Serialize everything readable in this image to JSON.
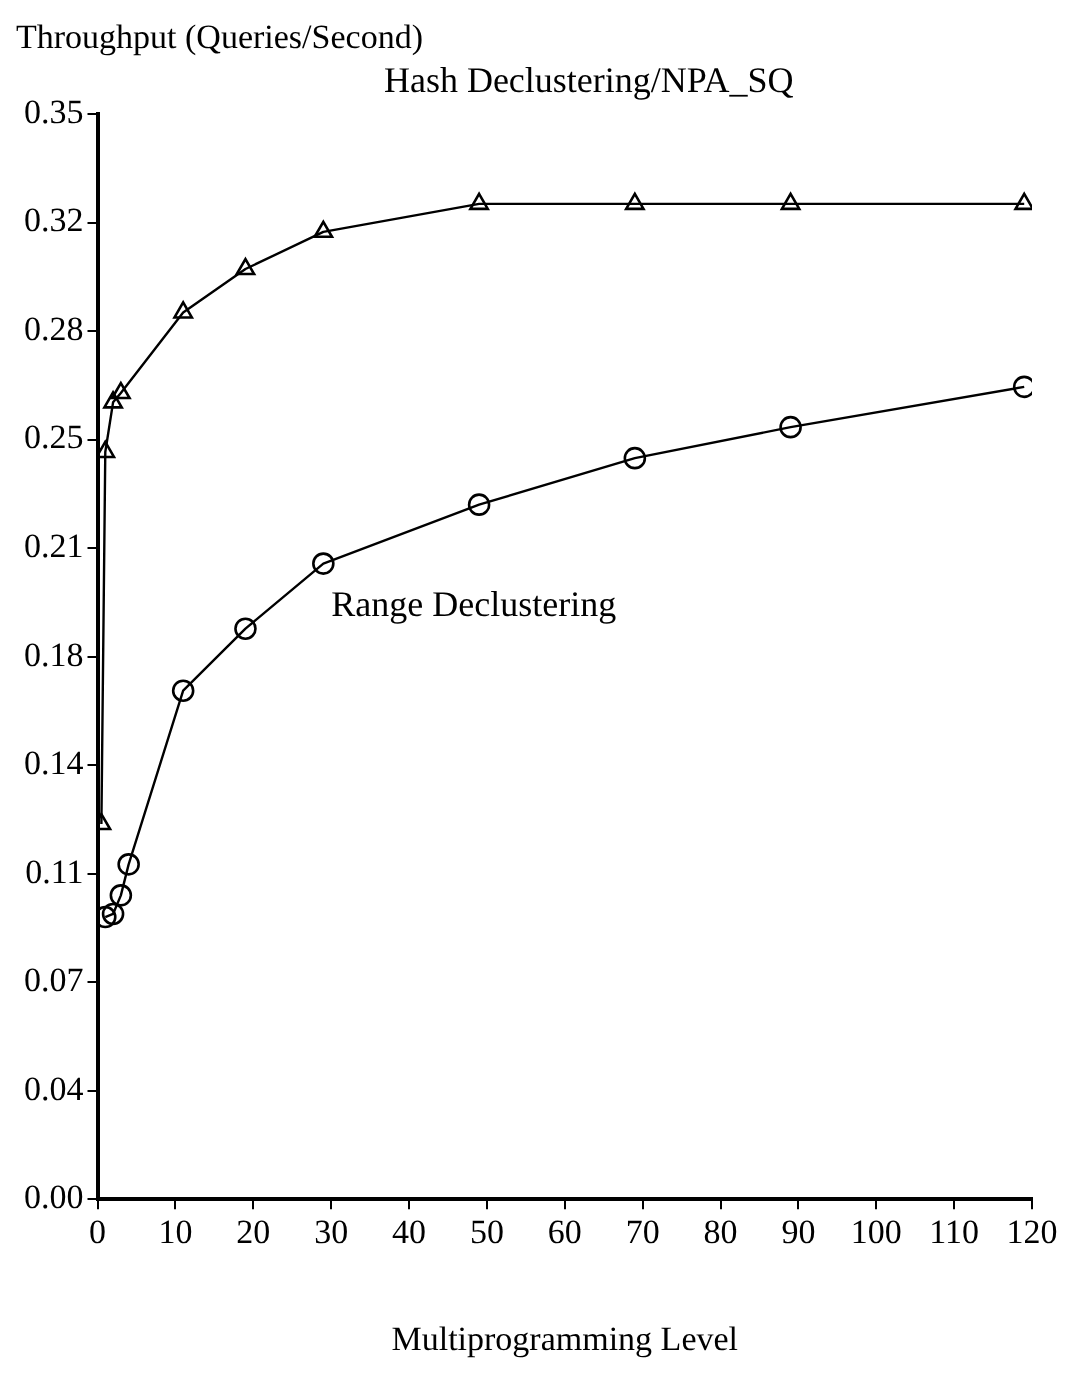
{
  "chart_data": {
    "type": "line",
    "xlabel": "Multiprogramming Level",
    "ylabel": "Throughput (Queries/Second)",
    "xlim": [
      0,
      120
    ],
    "xticks": [
      0,
      10,
      20,
      30,
      40,
      50,
      60,
      70,
      80,
      90,
      100,
      110,
      120
    ],
    "ylim": [
      0,
      0.35
    ],
    "yticks": [
      {
        "value": 0,
        "label": "0.00"
      },
      {
        "value": 0.035,
        "label": "0.04"
      },
      {
        "value": 0.07,
        "label": "0.07"
      },
      {
        "value": 0.105,
        "label": "0.11"
      },
      {
        "value": 0.14,
        "label": "0.14"
      },
      {
        "value": 0.175,
        "label": "0.18"
      },
      {
        "value": 0.21,
        "label": "0.21"
      },
      {
        "value": 0.245,
        "label": "0.25"
      },
      {
        "value": 0.28,
        "label": "0.28"
      },
      {
        "value": 0.315,
        "label": "0.32"
      },
      {
        "value": 0.35,
        "label": "0.35"
      }
    ],
    "grid": false,
    "legend": false,
    "series": [
      {
        "name": "Hash Declustering/NPA_SQ",
        "color": "#000000",
        "marker": "triangle",
        "x": [
          0.5,
          1,
          2,
          3,
          11,
          19,
          29,
          49,
          69,
          89,
          119
        ],
        "values": [
          0.121,
          0.241,
          0.257,
          0.26,
          0.286,
          0.3,
          0.312,
          0.321,
          0.321,
          0.321,
          0.321
        ]
      },
      {
        "name": "Range Declustering",
        "color": "#000000",
        "marker": "circle",
        "x": [
          1,
          2,
          3,
          4,
          11,
          19,
          29,
          49,
          69,
          89,
          119
        ],
        "values": [
          0.091,
          0.092,
          0.098,
          0.108,
          0.164,
          0.184,
          0.205,
          0.224,
          0.239,
          0.249,
          0.262
        ]
      }
    ]
  }
}
